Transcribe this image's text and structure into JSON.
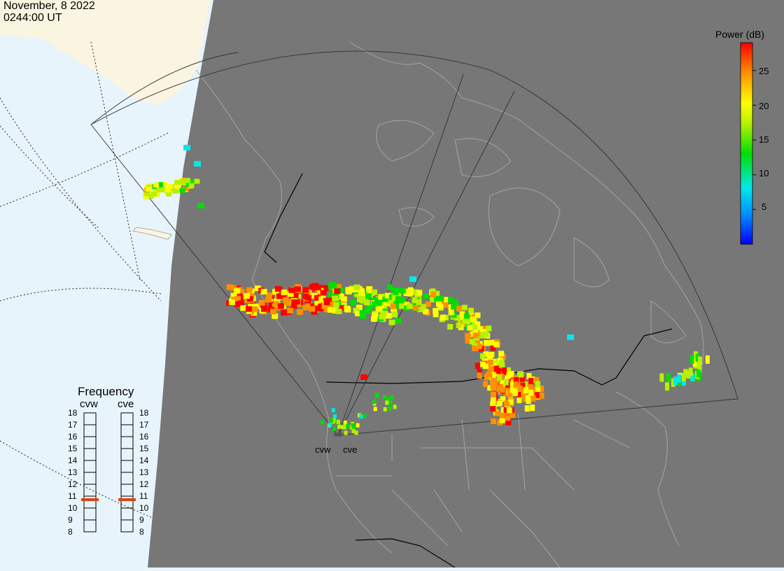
{
  "header": {
    "date": "November, 8 2022",
    "time": "0244:00 UT"
  },
  "colorbar": {
    "title": "Power (dB)",
    "ticks": [
      "25",
      "20",
      "15",
      "10",
      "5"
    ],
    "tick_values": [
      25,
      20,
      15,
      10,
      5
    ],
    "range": [
      0,
      29
    ],
    "colors": [
      "#0000ff",
      "#0090ff",
      "#00e8e8",
      "#00e000",
      "#b8f000",
      "#ffff00",
      "#ff9000",
      "#ff0000"
    ]
  },
  "frequency_panel": {
    "title": "Frequency",
    "radars": [
      {
        "name": "cvw",
        "selected_mhz": 10.7
      },
      {
        "name": "cve",
        "selected_mhz": 10.7
      }
    ],
    "ticks": [
      "18",
      "17",
      "16",
      "15",
      "14",
      "13",
      "12",
      "11",
      "10",
      "9",
      "8"
    ],
    "indicator_color": "#e04010"
  },
  "sites": [
    {
      "name": "cvw"
    },
    {
      "name": "cve"
    }
  ],
  "colors": {
    "night": "#777777",
    "day_ocean": "#e8f4fc",
    "day_land": "#faf5e0",
    "coast": "#a8a8a8"
  }
}
